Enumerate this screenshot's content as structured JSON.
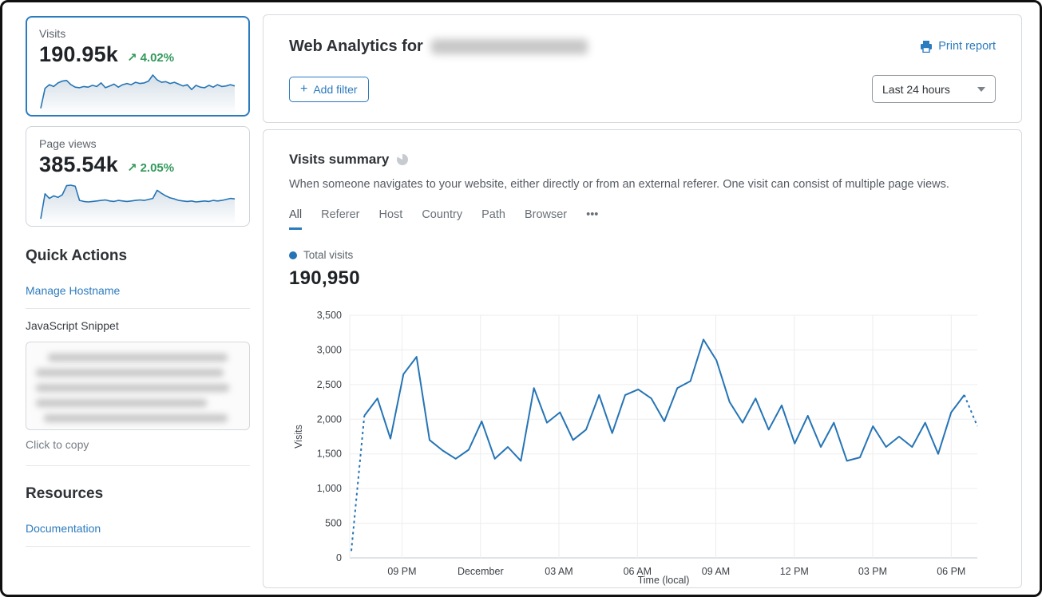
{
  "colors": {
    "accent_blue": "#2c7bbf",
    "chart_line_blue": "#2574b5",
    "positive_green": "#33995b",
    "selected_card_border": "#2c7bbf"
  },
  "sidebar": {
    "stats": [
      {
        "label": "Visits",
        "value": "190.95k",
        "trend_icon": "↗",
        "delta": "4.02%",
        "selected": true,
        "sparkline": [
          150,
          1800,
          2100,
          1950,
          2250,
          2400,
          2450,
          2100,
          1900,
          1850,
          1950,
          1900,
          2050,
          1950,
          2250,
          1850,
          2000,
          2150,
          1900,
          2100,
          2200,
          2100,
          2300,
          2200,
          2250,
          2400,
          2900,
          2500,
          2300,
          2350,
          2200,
          2300,
          2150,
          2000,
          2100,
          1700,
          2050,
          1900,
          1850,
          2050,
          1900,
          2100,
          1950,
          2000,
          2100,
          2000
        ]
      },
      {
        "label": "Page views",
        "value": "385.54k",
        "trend_icon": "↗",
        "delta": "2.05%",
        "selected": false,
        "sparkline": [
          300,
          5200,
          4300,
          4800,
          4500,
          5000,
          6800,
          6900,
          6700,
          3900,
          3700,
          3600,
          3700,
          3800,
          3900,
          4000,
          3800,
          3700,
          3900,
          3800,
          3700,
          3800,
          3900,
          4000,
          3900,
          4100,
          4300,
          5900,
          5300,
          4800,
          4400,
          4200,
          3900,
          3800,
          3700,
          3800,
          3600,
          3700,
          3800,
          3700,
          3900,
          3800,
          3900,
          4100,
          4300,
          4200
        ]
      }
    ],
    "quick_actions": {
      "title": "Quick Actions",
      "manage_hostname_label": "Manage Hostname",
      "snippet_label": "JavaScript Snippet",
      "snippet_redacted": true,
      "copy_hint": "Click to copy"
    },
    "resources": {
      "title": "Resources",
      "documentation_label": "Documentation"
    }
  },
  "header": {
    "title_prefix": "Web Analytics for",
    "domain_redacted": true,
    "print_label": "Print report",
    "add_filter_plus": "+",
    "add_filter_label": "Add filter",
    "time_range_value": "Last 24 hours"
  },
  "summary": {
    "title": "Visits summary",
    "description": "When someone navigates to your website, either directly or from an external referer. One visit can consist of multiple page views.",
    "tabs": [
      {
        "label": "All",
        "active": true
      },
      {
        "label": "Referer",
        "active": false
      },
      {
        "label": "Host",
        "active": false
      },
      {
        "label": "Country",
        "active": false
      },
      {
        "label": "Path",
        "active": false
      },
      {
        "label": "Browser",
        "active": false
      },
      {
        "label": "•••",
        "active": false
      }
    ],
    "legend_label": "Total visits",
    "total_value": "190,950"
  },
  "chart_data": {
    "type": "line",
    "title": "Total visits",
    "xlabel": "Time (local)",
    "ylabel": "Visits",
    "ylim": [
      0,
      3500
    ],
    "y_tick_step": 500,
    "y_ticks": [
      "0",
      "500",
      "1,000",
      "1,500",
      "2,000",
      "2,500",
      "3,000",
      "3,500"
    ],
    "x_ticks": [
      "09 PM",
      "December",
      "03 AM",
      "06 AM",
      "09 AM",
      "12 PM",
      "03 PM",
      "06 PM"
    ],
    "x_tick_indices": [
      4,
      10,
      16,
      22,
      28,
      34,
      40,
      46
    ],
    "grid": true,
    "legend_position": "top-left",
    "line_color": "#2574b5",
    "point_interval_minutes": 30,
    "values": [
      100,
      2050,
      2300,
      1720,
      2650,
      2900,
      1700,
      1550,
      1430,
      1560,
      1970,
      1430,
      1600,
      1400,
      2450,
      1950,
      2100,
      1700,
      1850,
      2350,
      1800,
      2350,
      2430,
      2300,
      1970,
      2450,
      2550,
      3150,
      2850,
      2250,
      1950,
      2300,
      1850,
      2200,
      1650,
      2050,
      1600,
      1950,
      1400,
      1450,
      1900,
      1600,
      1750,
      1600,
      1950,
      1500,
      2100,
      2350,
      1900
    ],
    "dashed_leading_segments": 1,
    "dashed_trailing_segments": 1
  }
}
